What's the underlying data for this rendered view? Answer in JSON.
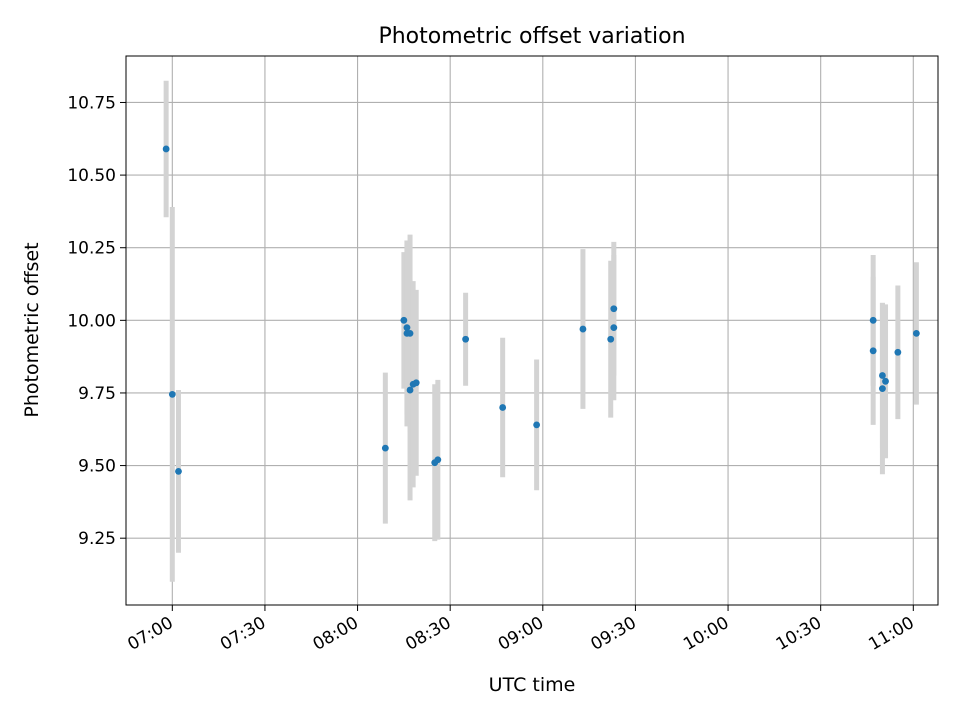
{
  "chart_data": {
    "type": "scatter",
    "title": "Photometric offset variation",
    "xlabel": "UTC time",
    "ylabel": "Photometric offset",
    "grid": true,
    "xlim": [
      "06:45",
      "11:08"
    ],
    "ylim": [
      9.02,
      10.91
    ],
    "x_ticks": [
      "07:00",
      "07:30",
      "08:00",
      "08:30",
      "09:00",
      "09:30",
      "10:00",
      "10:30",
      "11:00"
    ],
    "y_ticks": [
      "9.25",
      "9.50",
      "9.75",
      "10.00",
      "10.25",
      "10.50",
      "10.75"
    ],
    "colors": {
      "marker": "#1f77b4",
      "errorbar": "#d3d3d3",
      "grid": "#b0b0b0"
    },
    "points": [
      {
        "x": "06:58",
        "y": 10.59,
        "err": 0.235
      },
      {
        "x": "07:00",
        "y": 9.745,
        "err": 0.645
      },
      {
        "x": "07:02",
        "y": 9.48,
        "err": 0.28
      },
      {
        "x": "08:09",
        "y": 9.56,
        "err": 0.26
      },
      {
        "x": "08:15",
        "y": 10.0,
        "err": 0.235
      },
      {
        "x": "08:16",
        "y": 9.955,
        "err": 0.32
      },
      {
        "x": "08:16",
        "y": 9.975,
        "err": 0.3
      },
      {
        "x": "08:17",
        "y": 9.955,
        "err": 0.34
      },
      {
        "x": "08:17",
        "y": 9.76,
        "err": 0.38
      },
      {
        "x": "08:18",
        "y": 9.78,
        "err": 0.355
      },
      {
        "x": "08:19",
        "y": 9.785,
        "err": 0.32
      },
      {
        "x": "08:25",
        "y": 9.51,
        "err": 0.27
      },
      {
        "x": "08:26",
        "y": 9.52,
        "err": 0.275
      },
      {
        "x": "08:35",
        "y": 9.935,
        "err": 0.16
      },
      {
        "x": "08:47",
        "y": 9.7,
        "err": 0.24
      },
      {
        "x": "08:58",
        "y": 9.64,
        "err": 0.225
      },
      {
        "x": "09:13",
        "y": 9.97,
        "err": 0.275
      },
      {
        "x": "09:22",
        "y": 9.935,
        "err": 0.27
      },
      {
        "x": "09:23",
        "y": 9.975,
        "err": 0.25
      },
      {
        "x": "09:23",
        "y": 10.04,
        "err": 0.23
      },
      {
        "x": "10:47",
        "y": 10.0,
        "err": 0.225
      },
      {
        "x": "10:47",
        "y": 9.895,
        "err": 0.255
      },
      {
        "x": "10:50",
        "y": 9.81,
        "err": 0.25
      },
      {
        "x": "10:50",
        "y": 9.765,
        "err": 0.295
      },
      {
        "x": "10:51",
        "y": 9.79,
        "err": 0.265
      },
      {
        "x": "10:55",
        "y": 9.89,
        "err": 0.23
      },
      {
        "x": "11:01",
        "y": 9.955,
        "err": 0.245
      }
    ]
  }
}
